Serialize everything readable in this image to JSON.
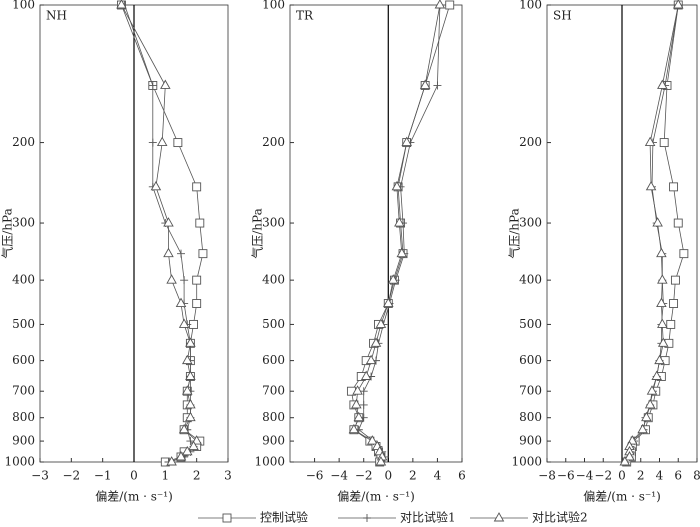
{
  "chart_data": [
    {
      "type": "line",
      "title": "NH",
      "xlabel": "偏差/(m · s⁻¹)",
      "ylabel": "气压/hPa",
      "y": [
        100,
        150,
        200,
        250,
        300,
        350,
        400,
        450,
        500,
        550,
        600,
        650,
        700,
        750,
        800,
        850,
        900,
        925,
        950,
        975,
        1000
      ],
      "ylim": [
        100,
        1000
      ],
      "yticks": [
        100,
        200,
        300,
        400,
        500,
        600,
        700,
        800,
        900,
        1000
      ],
      "log_y": true,
      "y_reversed": true,
      "xlim": [
        -3,
        3
      ],
      "xticks": [
        {
          "value": -3,
          "label": "−3"
        },
        {
          "value": -2,
          "label": "−2"
        },
        {
          "value": -1,
          "label": "−1"
        },
        0,
        1,
        2,
        3
      ],
      "series": [
        {
          "name": "控制试验",
          "marker": "square",
          "color": "#555555",
          "values": [
            -0.4,
            0.6,
            1.4,
            2.0,
            2.1,
            2.2,
            2.0,
            2.0,
            1.9,
            1.8,
            1.8,
            1.8,
            1.7,
            1.7,
            1.7,
            1.6,
            2.1,
            2.0,
            1.6,
            1.5,
            1.0
          ]
        },
        {
          "name": "对比试验1",
          "marker": "plus",
          "color": "#555555",
          "values": [
            -0.3,
            0.6,
            0.6,
            0.6,
            1.0,
            1.5,
            1.6,
            1.6,
            1.7,
            1.8,
            1.8,
            1.8,
            1.8,
            1.8,
            1.8,
            1.7,
            1.8,
            1.9,
            1.8,
            1.6,
            1.1
          ]
        },
        {
          "name": "对比试验2",
          "marker": "triangle",
          "color": "#555555",
          "values": [
            -0.4,
            1.0,
            0.9,
            0.7,
            1.1,
            1.1,
            1.2,
            1.5,
            1.6,
            1.8,
            1.7,
            1.8,
            1.7,
            1.8,
            1.8,
            1.6,
            2.0,
            1.9,
            1.7,
            1.5,
            1.2
          ]
        }
      ]
    },
    {
      "type": "line",
      "title": "TR",
      "xlabel": "偏差/(m · s⁻¹)",
      "ylabel": "气压/hPa",
      "y": [
        100,
        150,
        200,
        250,
        300,
        350,
        400,
        450,
        500,
        550,
        600,
        650,
        700,
        750,
        800,
        850,
        900,
        925,
        950,
        975,
        1000
      ],
      "ylim": [
        100,
        1000
      ],
      "yticks": [
        100,
        200,
        300,
        400,
        500,
        600,
        700,
        800,
        900,
        1000
      ],
      "log_y": true,
      "y_reversed": true,
      "xlim": [
        -8,
        6
      ],
      "xticks": [
        {
          "value": -6,
          "label": "−6"
        },
        {
          "value": -4,
          "label": "−4"
        },
        {
          "value": -2,
          "label": "−2"
        },
        0,
        2,
        4,
        6
      ],
      "series": [
        {
          "name": "控制试验",
          "marker": "square",
          "color": "#555555",
          "values": [
            5.0,
            3.0,
            1.5,
            0.8,
            1.0,
            1.2,
            0.5,
            0,
            -0.8,
            -1.2,
            -1.8,
            -2.2,
            -3.0,
            -2.8,
            -2.4,
            -2.8,
            -1.5,
            -1.0,
            -0.8,
            -0.6,
            -0.7
          ]
        },
        {
          "name": "对比试验1",
          "marker": "plus",
          "color": "#555555",
          "values": [
            4.2,
            4.0,
            1.8,
            1.0,
            1.2,
            1.3,
            0.6,
            0.1,
            -0.4,
            -0.8,
            -1.0,
            -1.4,
            -2.0,
            -2.0,
            -2.0,
            -2.4,
            -1.2,
            -0.8,
            -0.5,
            -0.3,
            -0.5
          ]
        },
        {
          "name": "对比试验2",
          "marker": "triangle",
          "color": "#555555",
          "values": [
            4.2,
            3.0,
            1.5,
            0.7,
            0.9,
            1.1,
            0.4,
            0,
            -0.6,
            -1.0,
            -1.4,
            -1.8,
            -2.5,
            -2.6,
            -2.4,
            -2.8,
            -1.3,
            -0.9,
            -0.7,
            -0.5,
            -0.6
          ]
        }
      ]
    },
    {
      "type": "line",
      "title": "SH",
      "xlabel": "偏差/(m · s⁻¹)",
      "ylabel": "气压/hPa",
      "y": [
        100,
        150,
        200,
        250,
        300,
        350,
        400,
        450,
        500,
        550,
        600,
        650,
        700,
        750,
        800,
        850,
        900,
        925,
        950,
        975,
        1000
      ],
      "ylim": [
        100,
        1000
      ],
      "yticks": [
        100,
        200,
        300,
        400,
        500,
        600,
        700,
        800,
        900,
        1000
      ],
      "log_y": true,
      "y_reversed": true,
      "xlim": [
        -8,
        8
      ],
      "xticks": [
        {
          "value": -8,
          "label": "−8"
        },
        {
          "value": -6,
          "label": "−6"
        },
        {
          "value": -4,
          "label": "−4"
        },
        {
          "value": -2,
          "label": "−2"
        },
        0,
        2,
        4,
        6,
        8
      ],
      "series": [
        {
          "name": "控制试验",
          "marker": "square",
          "color": "#555555",
          "values": [
            6.0,
            4.8,
            4.5,
            5.5,
            6.0,
            6.6,
            5.7,
            5.5,
            5.2,
            5.0,
            4.6,
            4.2,
            3.6,
            3.3,
            2.8,
            2.5,
            1.4,
            1.1,
            1.0,
            1.0,
            0.5
          ]
        },
        {
          "name": "对比试验1",
          "marker": "plus",
          "color": "#555555",
          "values": [
            6.0,
            4.6,
            3.3,
            3.2,
            3.7,
            4.3,
            4.3,
            4.4,
            4.2,
            4.2,
            4.0,
            3.7,
            3.3,
            3.0,
            2.5,
            2.3,
            1.3,
            0.9,
            0.9,
            0.8,
            0.4
          ]
        },
        {
          "name": "对比试验2",
          "marker": "triangle",
          "color": "#555555",
          "values": [
            6.0,
            4.3,
            3.0,
            3.1,
            3.8,
            4.2,
            4.3,
            4.2,
            4.3,
            4.4,
            4.0,
            3.7,
            3.2,
            3.0,
            2.6,
            2.2,
            1.1,
            0.8,
            0.8,
            0.8,
            0.3
          ]
        }
      ]
    }
  ]
}
